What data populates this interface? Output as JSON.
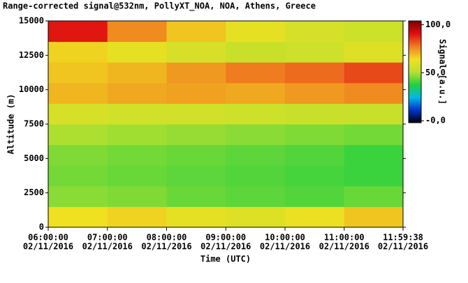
{
  "chart_data": {
    "type": "heatmap",
    "title": "Range-corrected signal@532nm, PollyXT_NOA, NOA, Athens, Greece",
    "x_label": "Time (UTC)",
    "y_label": "Altitude (m)",
    "colorbar_label": "Signal [a.u.]",
    "x": [
      6,
      7,
      8,
      9,
      10,
      11,
      11.9939
    ],
    "y": [
      0,
      1500,
      3000,
      4500,
      6000,
      7500,
      9000,
      10500,
      12000,
      13500,
      15000
    ],
    "z": [
      [
        64,
        66,
        62,
        60,
        63,
        68
      ],
      [
        47,
        46,
        44,
        43,
        42,
        44
      ],
      [
        45,
        44,
        43,
        42,
        41,
        40
      ],
      [
        46,
        45,
        44,
        43,
        42,
        40
      ],
      [
        50,
        49,
        48,
        47,
        46,
        45
      ],
      [
        58,
        57,
        57,
        56,
        55,
        55
      ],
      [
        70,
        72,
        73,
        72,
        74,
        76
      ],
      [
        68,
        70,
        74,
        78,
        80,
        84
      ],
      [
        66,
        62,
        58,
        55,
        56,
        60
      ],
      [
        90,
        76,
        68,
        62,
        58,
        56
      ]
    ],
    "xlim": [
      6,
      11.9939
    ],
    "xticks": [
      {
        "value": 6,
        "label": [
          "06:00:00",
          "02/11/2016"
        ]
      },
      {
        "value": 7,
        "label": [
          "07:00:00",
          "02/11/2016"
        ]
      },
      {
        "value": 8,
        "label": [
          "08:00:00",
          "02/11/2016"
        ]
      },
      {
        "value": 9,
        "label": [
          "09:00:00",
          "02/11/2016"
        ]
      },
      {
        "value": 10,
        "label": [
          "10:00:00",
          "02/11/2016"
        ]
      },
      {
        "value": 11,
        "label": [
          "11:00:00",
          "02/11/2016"
        ]
      },
      {
        "value": 11.9939,
        "label": [
          "11:59:38",
          "02/11/2016"
        ]
      }
    ],
    "ylim": [
      0,
      15000
    ],
    "yticks": [
      0,
      2500,
      5000,
      7500,
      10000,
      12500,
      15000
    ],
    "zlim": [
      -2,
      104
    ],
    "zticks": [
      {
        "value": 0,
        "label": "-0,0"
      },
      {
        "value": 50,
        "label": "50,0"
      },
      {
        "value": 100,
        "label": "100,0"
      }
    ],
    "colormap": [
      "#000000",
      "#0030c8",
      "#00b8e8",
      "#20d040",
      "#b8e030",
      "#f0e020",
      "#f08020",
      "#e01010",
      "#800000"
    ]
  }
}
